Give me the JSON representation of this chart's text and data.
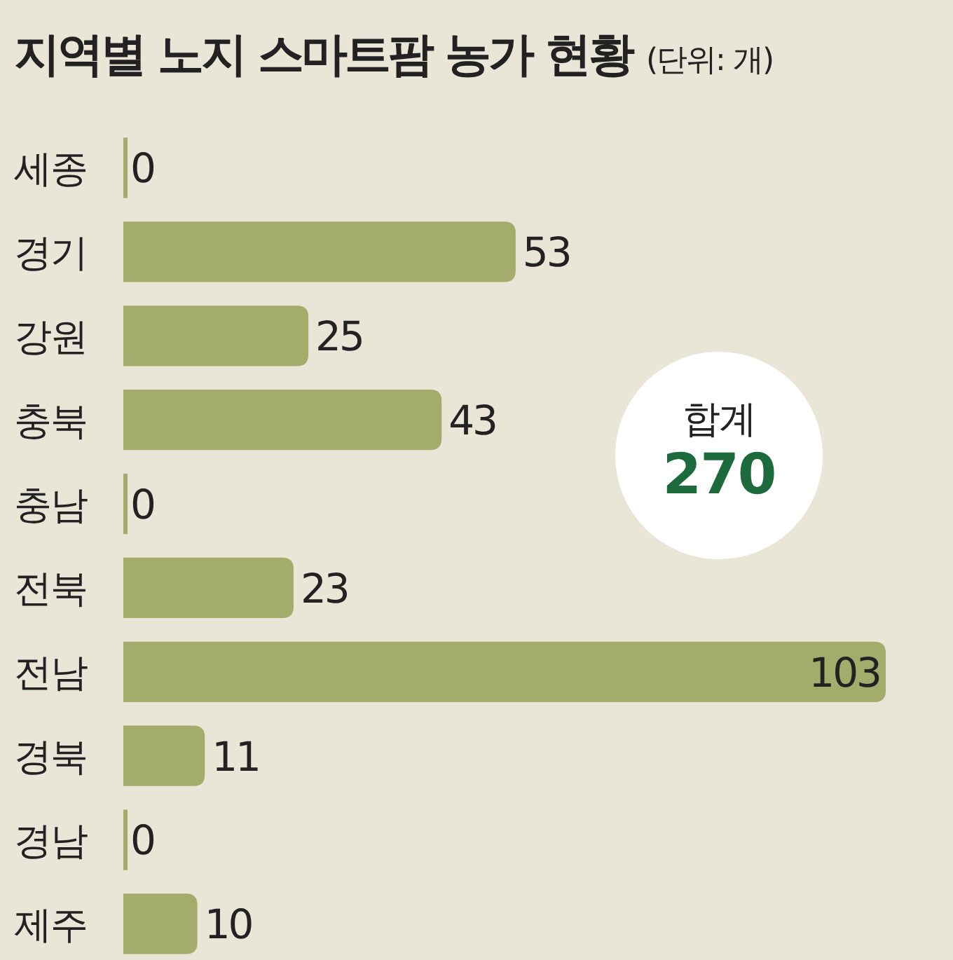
{
  "chart_data": {
    "type": "bar",
    "orientation": "horizontal",
    "title": "지역별 노지 스마트팜 농가 현황",
    "subtitle": "(단위: 개)",
    "categories": [
      "세종",
      "경기",
      "강원",
      "충북",
      "충남",
      "전북",
      "전남",
      "경북",
      "경남",
      "제주"
    ],
    "values": [
      0,
      53,
      25,
      43,
      0,
      23,
      103,
      11,
      0,
      10
    ],
    "color": "#a3ac6b",
    "data_labels": true,
    "annotations": [
      "합계",
      "270"
    ]
  }
}
